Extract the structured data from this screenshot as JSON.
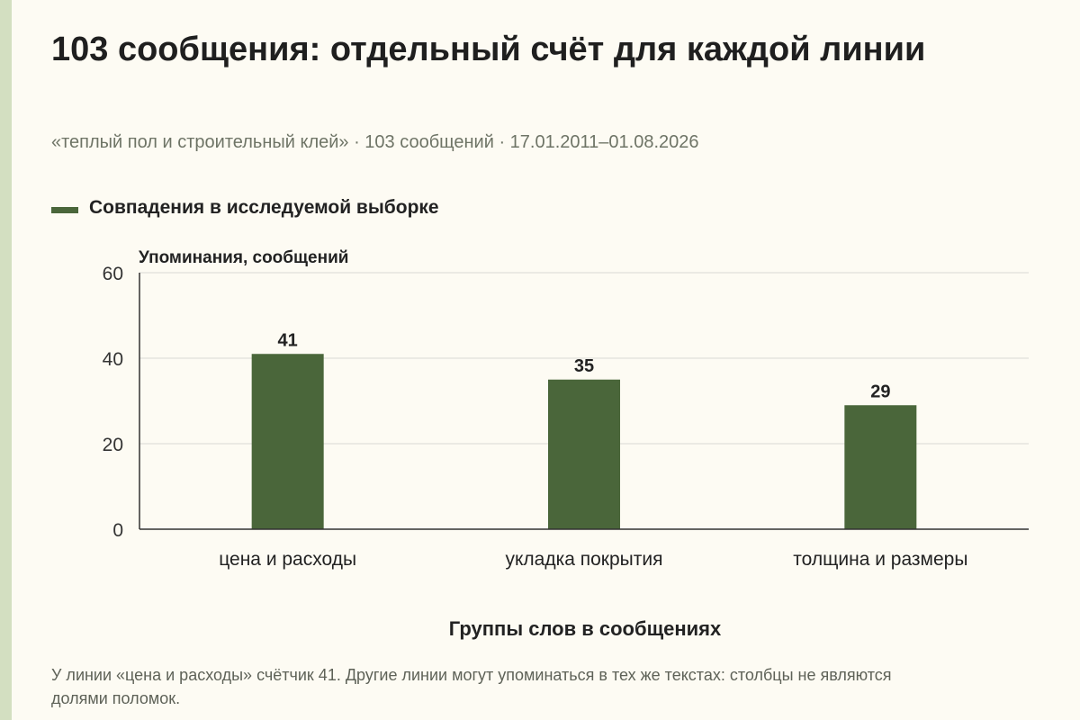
{
  "chart_data": {
    "type": "bar",
    "title": "103 сообщения: отдельный счёт для каждой линии",
    "subtitle": "«теплый пол и строительный клей» · 103 сообщений · 17.01.2011–01.08.2026",
    "categories": [
      "цена и расходы",
      "укладка покрытия",
      "толщина и размеры"
    ],
    "series": [
      {
        "name": "Совпадения в исследуемой выборке",
        "values": [
          41,
          35,
          29
        ],
        "color": "#4a663a"
      }
    ],
    "ylabel": "Упоминания, сообщений",
    "xlabel": "Группы слов в сообщениях",
    "ylim": [
      0,
      60
    ],
    "yticks": [
      0,
      20,
      40,
      60
    ],
    "grid": true,
    "legend_position": "top-left",
    "data_labels": true
  },
  "footnote": "У линии «цена и расходы» счётчик 41. Другие линии могут упоминаться в тех же текстах: столбцы не являются долями поломок.",
  "colors": {
    "background": "#fdfbf3",
    "side_strip": "#d3dfc1",
    "bar": "#4a663a",
    "grid": "#d9d9d4",
    "axis": "#333333"
  }
}
